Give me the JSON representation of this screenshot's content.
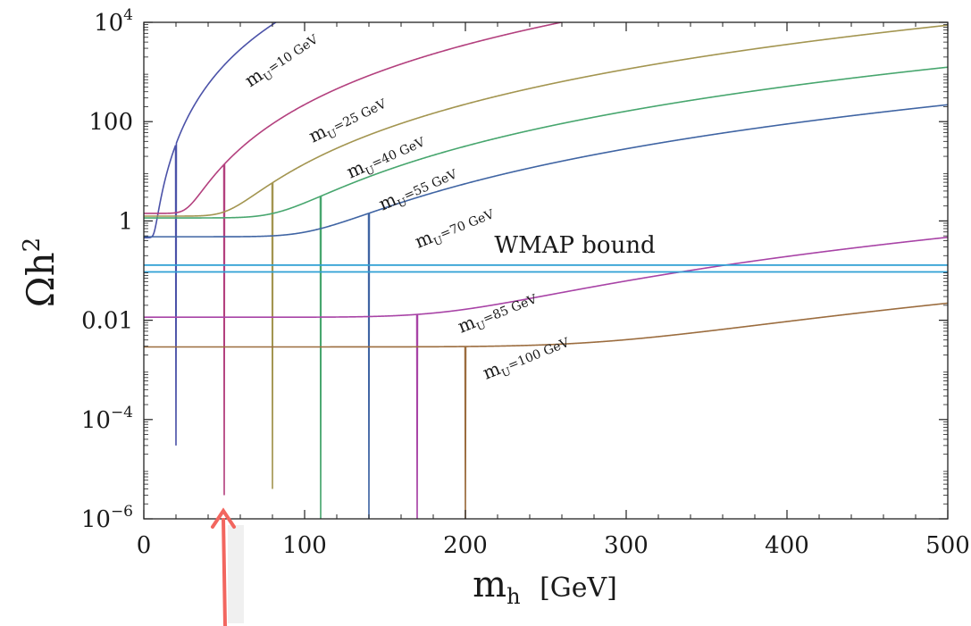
{
  "chart_data": {
    "type": "line",
    "title": "",
    "xlabel": "m",
    "xlabel_subscript": "h",
    "xlabel_unit": "[GeV]",
    "ylabel": "Ωh",
    "ylabel_superscript": "2",
    "xlim": [
      0,
      500
    ],
    "ylim_log10": [
      -6,
      4
    ],
    "yscale": "log",
    "grid": false,
    "x_ticks": [
      {
        "value": 0,
        "label": "0"
      },
      {
        "value": 100,
        "label": "100"
      },
      {
        "value": 200,
        "label": "200"
      },
      {
        "value": 300,
        "label": "300"
      },
      {
        "value": 400,
        "label": "400"
      },
      {
        "value": 500,
        "label": "500"
      }
    ],
    "y_ticks": [
      {
        "exp": 4,
        "base": "10",
        "sup": "4",
        "label": ""
      },
      {
        "exp": 2,
        "base": "",
        "sup": "",
        "label": "100"
      },
      {
        "exp": 0,
        "base": "",
        "sup": "",
        "label": "1"
      },
      {
        "exp": -2,
        "base": "",
        "sup": "",
        "label": "0.01"
      },
      {
        "exp": -4,
        "base": "10",
        "sup": "−4",
        "label": ""
      },
      {
        "exp": -6,
        "base": "10",
        "sup": "−6",
        "label": ""
      }
    ],
    "series": [
      {
        "name": "m_U=10 GeV",
        "label_main": "m",
        "label_sub": "U",
        "label_rest": "=10 GeV",
        "mU": 10,
        "pole": 20,
        "low": 0.46,
        "dip": 3e-05,
        "A": 0.00022,
        "n": 4,
        "color": "#4b52a8"
      },
      {
        "name": "m_U=25 GeV",
        "label_main": "m",
        "label_sub": "U",
        "label_rest": "=25 GeV",
        "mU": 25,
        "pole": 50,
        "low": 1.42,
        "dip": 3e-06,
        "A": 2.2e-06,
        "n": 4,
        "color": "#b3407e"
      },
      {
        "name": "m_U=40 GeV",
        "label_main": "m",
        "label_sub": "U",
        "label_rest": "=40 GeV",
        "mU": 40,
        "pole": 80,
        "low": 1.25,
        "dip": 4e-06,
        "A": 1.4e-07,
        "n": 4,
        "color": "#a39550"
      },
      {
        "name": "m_U=55 GeV",
        "label_main": "m",
        "label_sub": "U",
        "label_rest": "=55 GeV",
        "mU": 55,
        "pole": 110,
        "low": 1.15,
        "dip": 1e-06,
        "A": 2e-08,
        "n": 4,
        "color": "#47a66e"
      },
      {
        "name": "m_U=70 GeV",
        "label_main": "m",
        "label_sub": "U",
        "label_rest": "=70 GeV",
        "mU": 70,
        "pole": 140,
        "low": 0.48,
        "dip": 1e-06,
        "A": 3.5e-09,
        "n": 4,
        "color": "#3f64a3"
      },
      {
        "name": "m_U=85 GeV",
        "label_main": "m",
        "label_sub": "U",
        "label_rest": "=85 GeV",
        "mU": 85,
        "pole": 170,
        "low": 0.0115,
        "dip": 1e-06,
        "A": 7.5e-12,
        "n": 4,
        "color": "#a843a6"
      },
      {
        "name": "m_U=100 GeV",
        "label_main": "m",
        "label_sub": "U",
        "label_rest": "=100 GeV",
        "mU": 100,
        "pole": 200,
        "low": 0.0029,
        "dip": 1e-06,
        "A": 3.5e-13,
        "n": 4,
        "color": "#9b6c3e"
      }
    ],
    "annotations": [
      {
        "text": "WMAP bound",
        "band": [
          0.094,
          0.129
        ],
        "color": "#2e9fd4"
      }
    ],
    "arrow": {
      "x": 50,
      "color": "#f2665f"
    }
  }
}
